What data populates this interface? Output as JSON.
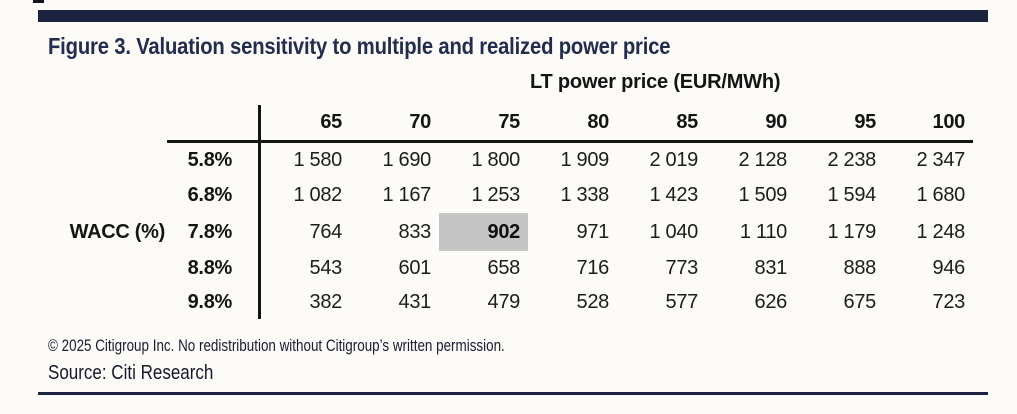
{
  "title": "Figure 3. Valuation sensitivity to multiple and realized power price",
  "chart_data": {
    "type": "table",
    "col_group_label": "LT power price (EUR/MWh)",
    "row_group_label": "WACC (%)",
    "col_headers": [
      "65",
      "70",
      "75",
      "80",
      "85",
      "90",
      "95",
      "100"
    ],
    "rows": [
      {
        "label": "5.8%",
        "values": [
          "1 580",
          "1 690",
          "1 800",
          "1 909",
          "2 019",
          "2 128",
          "2 238",
          "2 347"
        ]
      },
      {
        "label": "6.8%",
        "values": [
          "1 082",
          "1 167",
          "1 253",
          "1 338",
          "1 423",
          "1 509",
          "1 594",
          "1 680"
        ]
      },
      {
        "label": "7.8%",
        "values": [
          "764",
          "833",
          "902",
          "971",
          "1 040",
          "1 110",
          "1 179",
          "1 248"
        ]
      },
      {
        "label": "8.8%",
        "values": [
          "543",
          "601",
          "658",
          "716",
          "773",
          "831",
          "888",
          "946"
        ]
      },
      {
        "label": "9.8%",
        "values": [
          "382",
          "431",
          "479",
          "528",
          "577",
          "626",
          "675",
          "723"
        ]
      }
    ],
    "highlight": {
      "row_label": "7.8%",
      "col_header": "75",
      "value": "902"
    }
  },
  "footer": {
    "copyright": "© 2025 Citigroup Inc. No redistribution without Citigroup’s written permission.",
    "source": "Source: Citi Research"
  },
  "colors": {
    "accent_navy": "#1c2340",
    "highlight_gray": "#c5c5c5",
    "text_black": "#141414"
  }
}
